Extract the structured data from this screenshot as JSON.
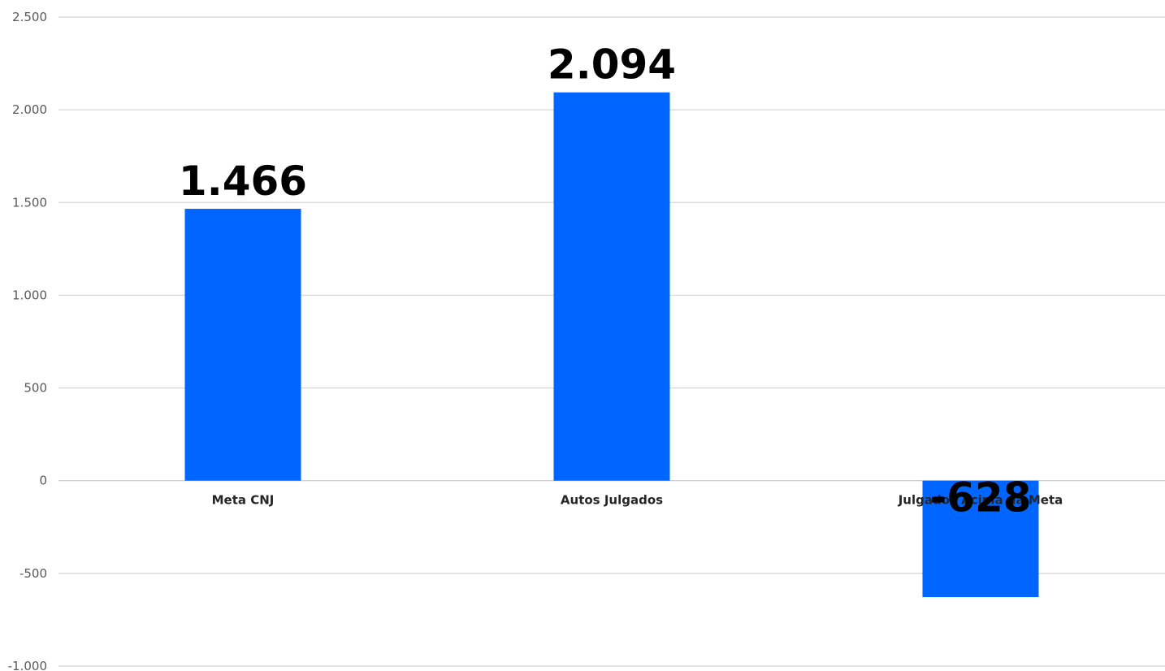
{
  "chart_data": {
    "type": "bar",
    "title": "",
    "xlabel": "",
    "ylabel": "",
    "categories": [
      "Meta CNJ",
      "Autos Julgados",
      "Julgados Acima da Meta"
    ],
    "values": [
      1466,
      2094,
      -628
    ],
    "value_labels": [
      "1.466",
      "2.094",
      "-628"
    ],
    "ylim": [
      -1000,
      2500
    ],
    "yticks": [
      2500,
      2000,
      1500,
      1000,
      500,
      0,
      -500,
      -1000
    ],
    "ytick_labels": [
      "2.500",
      "2.000",
      "1.500",
      "1.000",
      "500",
      "0",
      "-500",
      "-1.000"
    ],
    "grid": true,
    "legend": "none",
    "bar_color": "#0066ff"
  }
}
